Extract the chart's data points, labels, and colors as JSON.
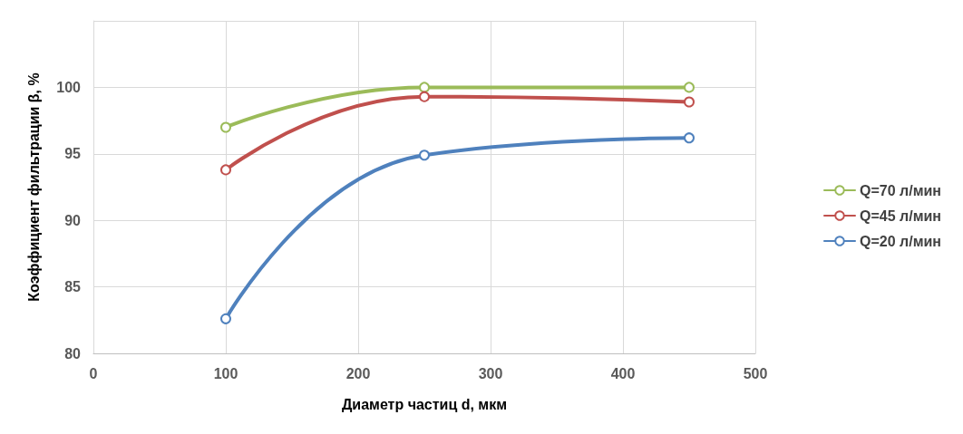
{
  "chart_data": {
    "type": "line",
    "xlabel": "Диаметр частиц d, мкм",
    "ylabel": "Коэффициент фильтрации β, %",
    "x": [
      100,
      250,
      450
    ],
    "series": [
      {
        "name": "Q=70 л/мин",
        "color": "#9bbb59",
        "values": [
          97,
          100,
          100
        ]
      },
      {
        "name": "Q=45 л/мин",
        "color": "#c0504d",
        "values": [
          93.8,
          99.3,
          98.9
        ]
      },
      {
        "name": "Q=20 л/мин",
        "color": "#4f81bd",
        "values": [
          82.6,
          94.9,
          96.2
        ]
      }
    ],
    "xlim": [
      0,
      500
    ],
    "xticks": [
      0,
      100,
      200,
      300,
      400,
      500
    ],
    "ylim": [
      80,
      105
    ],
    "yticks": [
      80,
      85,
      90,
      95,
      100,
      {
        "value": 105,
        "label": null
      }
    ],
    "grid": true,
    "legend": "right",
    "marker": "circle",
    "line_style": "solid"
  }
}
